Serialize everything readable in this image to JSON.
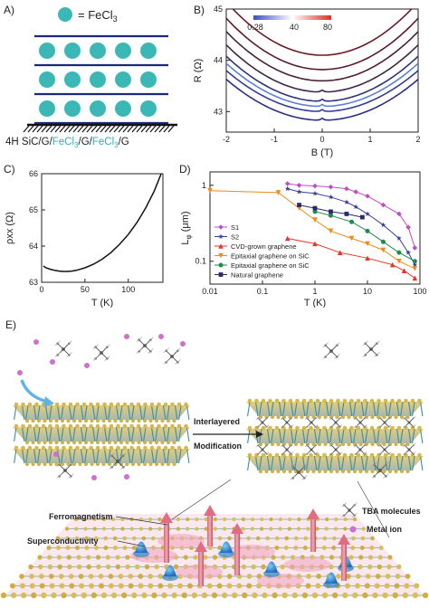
{
  "panels": {
    "a": {
      "label": "A)",
      "legend_text": "= FeCl",
      "legend_sub": "3",
      "substrate_parts": [
        "4H SiC/",
        "G/",
        "FeCl",
        "3",
        "/",
        "G/",
        "FeCl",
        "3",
        "/",
        "G"
      ],
      "colors": {
        "sphere": "#3bb8b5",
        "plane": "#1a2a78"
      }
    },
    "b": {
      "label": "B)"
    },
    "c": {
      "label": "C)"
    },
    "d": {
      "label": "D)"
    },
    "e": {
      "label": "E)",
      "arrow_label_1": "Interlayered",
      "arrow_label_2": "Modification",
      "ferro": "Ferromagnetism",
      "super": "Superconductivity",
      "tba": "TBA molecules",
      "metal": "Metal ion"
    }
  },
  "chart_data": [
    {
      "panel": "B",
      "type": "line",
      "xlabel": "B (T)",
      "ylabel": "R (Ω)",
      "xlim": [
        -2,
        2
      ],
      "ylim": [
        42.6,
        45
      ],
      "xticks": [
        -2,
        -1,
        0,
        1,
        2
      ],
      "yticks": [
        43,
        44,
        45
      ],
      "colorbar": {
        "ticks": [
          "0.28",
          "40",
          "80"
        ],
        "colors": [
          "#3b4fc4",
          "#ffffff",
          "#d9302c"
        ]
      },
      "series": [
        {
          "r0": 42.83,
          "a": 0.2,
          "color": "#2a2f86"
        },
        {
          "r0": 43.0,
          "a": 0.2,
          "color": "#353a92"
        },
        {
          "r0": 43.1,
          "a": 0.21,
          "color": "#5b82d6"
        },
        {
          "r0": 43.2,
          "a": 0.22,
          "color": "#2f3478"
        },
        {
          "r0": 43.38,
          "a": 0.23,
          "color": "#3c2348"
        },
        {
          "r0": 43.6,
          "a": 0.24,
          "color": "#4a1f35"
        },
        {
          "r0": 43.82,
          "a": 0.25,
          "color": "#581b2a"
        },
        {
          "r0": 44.1,
          "a": 0.26,
          "color": "#6c1a22"
        }
      ]
    },
    {
      "panel": "C",
      "type": "line",
      "xlabel": "T (K)",
      "ylabel": "ρxx (Ω)",
      "xlim": [
        0,
        140
      ],
      "ylim": [
        63,
        66
      ],
      "xticks": [
        0,
        50,
        100
      ],
      "yticks": [
        63,
        64,
        65,
        66
      ],
      "x": [
        2,
        5,
        10,
        15,
        20,
        25,
        30,
        35,
        40,
        50,
        60,
        70,
        80,
        90,
        100,
        110,
        120,
        130,
        138
      ],
      "y": [
        63.45,
        63.4,
        63.36,
        63.33,
        63.31,
        63.3,
        63.3,
        63.31,
        63.33,
        63.4,
        63.5,
        63.64,
        63.82,
        64.05,
        64.32,
        64.65,
        65.05,
        65.52,
        66.0
      ]
    },
    {
      "panel": "D",
      "type": "line",
      "xlabel": "T (K)",
      "ylabel": "L",
      "ylabel_sub": "φ",
      "ylabel_unit": " (μm)",
      "xscale": "log",
      "yscale": "log",
      "xlim": [
        0.01,
        100
      ],
      "ylim": [
        0.05,
        1.5
      ],
      "xticks": [
        "0.01",
        "0.1",
        "1",
        "10",
        "100"
      ],
      "yticks": [
        "0.1",
        "1"
      ],
      "series": [
        {
          "name": "S1",
          "color": "#c04ec0",
          "marker": "diamond",
          "x": [
            0.3,
            0.5,
            1,
            2,
            4,
            6,
            10,
            20,
            40,
            60,
            80
          ],
          "y": [
            1.05,
            1.0,
            0.98,
            0.95,
            0.9,
            0.82,
            0.72,
            0.55,
            0.42,
            0.28,
            0.15
          ]
        },
        {
          "name": "S2",
          "color": "#3a3f99",
          "marker": "star",
          "x": [
            0.3,
            0.5,
            1,
            2,
            4,
            6,
            10,
            20,
            40,
            60,
            80
          ],
          "y": [
            0.9,
            0.82,
            0.78,
            0.7,
            0.6,
            0.52,
            0.42,
            0.3,
            0.2,
            0.13,
            0.09
          ]
        },
        {
          "name": "CVD-grown graphene",
          "color": "#e8352b",
          "marker": "triangle",
          "x": [
            0.3,
            1,
            3,
            10,
            30,
            50,
            80
          ],
          "y": [
            0.2,
            0.17,
            0.13,
            0.11,
            0.09,
            0.075,
            0.06
          ]
        },
        {
          "name": "Epitaxial graphene on SiC",
          "color": "#f08a1c",
          "marker": "tri-down",
          "x": [
            0.01,
            0.2,
            0.5,
            1,
            2,
            5,
            10,
            20,
            40,
            80
          ],
          "y": [
            0.85,
            0.8,
            0.5,
            0.35,
            0.25,
            0.2,
            0.17,
            0.14,
            0.1,
            0.08
          ]
        },
        {
          "name": "Epitaxial graphene on SiC",
          "color": "#1f8a4c",
          "marker": "circle",
          "x": [
            1,
            2,
            5,
            10,
            20,
            40,
            80
          ],
          "y": [
            0.45,
            0.4,
            0.33,
            0.25,
            0.18,
            0.13,
            0.1
          ]
        },
        {
          "name": "Natural graphene",
          "color": "#2a2a6a",
          "marker": "square",
          "x": [
            0.5,
            1,
            2,
            4,
            8
          ],
          "y": [
            0.55,
            0.5,
            0.45,
            0.42,
            0.38
          ]
        }
      ]
    }
  ]
}
